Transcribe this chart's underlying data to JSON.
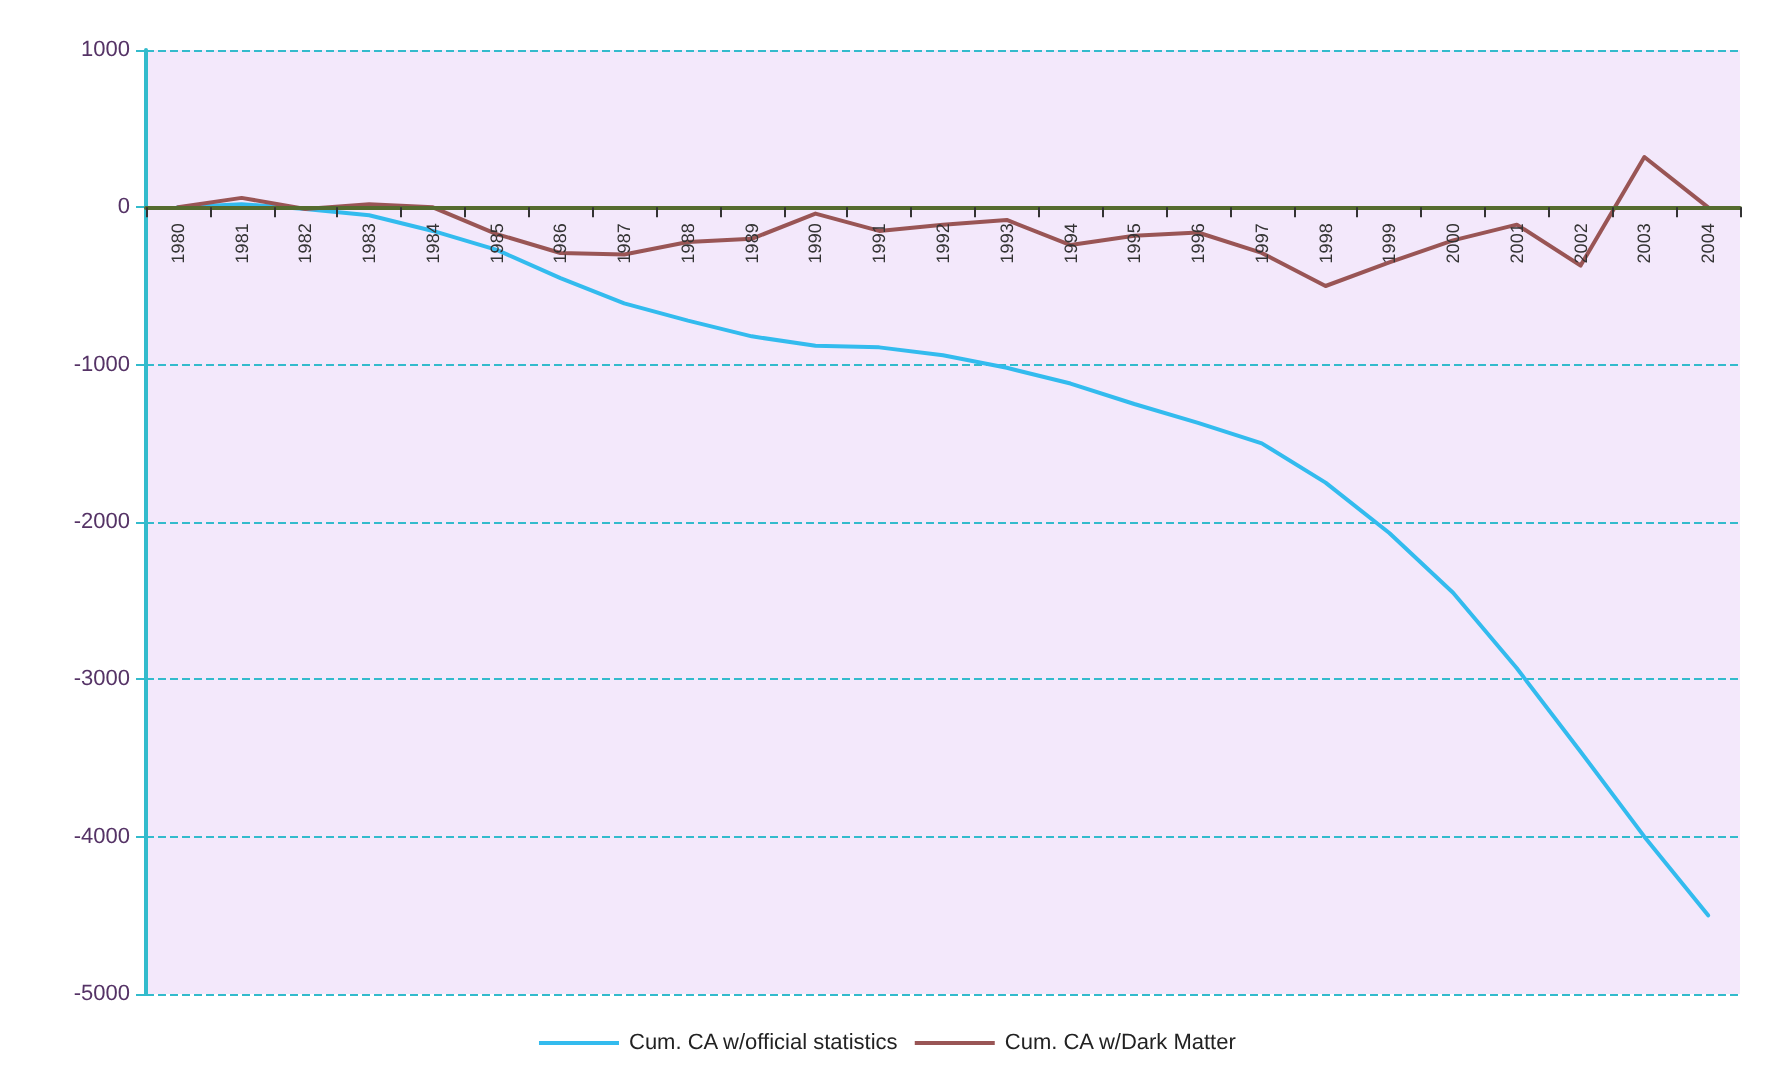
{
  "chart_data": {
    "type": "line",
    "categories": [
      "1980",
      "1981",
      "1982",
      "1983",
      "1984",
      "1985",
      "1986",
      "1987",
      "1988",
      "1989",
      "1990",
      "1991",
      "1992",
      "1993",
      "1994",
      "1995",
      "1996",
      "1997",
      "1998",
      "1999",
      "2000",
      "2001",
      "2002",
      "2003",
      "2004"
    ],
    "series": [
      {
        "name": "Cum. CA w/official statistics",
        "color": "#33bbee",
        "values": [
          0,
          20,
          -10,
          -50,
          -150,
          -270,
          -450,
          -610,
          -720,
          -820,
          -880,
          -890,
          -940,
          -1020,
          -1120,
          -1250,
          -1370,
          -1500,
          -1750,
          -2070,
          -2450,
          -2930,
          -3460,
          -4000,
          -4500
        ]
      },
      {
        "name": "Cum. CA w/Dark Matter",
        "color": "#995555",
        "values": [
          0,
          60,
          -10,
          20,
          0,
          -170,
          -290,
          -300,
          -220,
          -200,
          -40,
          -150,
          -110,
          -80,
          -240,
          -180,
          -160,
          -290,
          -500,
          -350,
          -210,
          -110,
          -370,
          320,
          0
        ]
      }
    ],
    "ylim": [
      -5000,
      1000
    ],
    "yticks": [
      -5000,
      -4000,
      -3000,
      -2000,
      -1000,
      0,
      1000
    ],
    "grid": "y",
    "legend": "bottom",
    "marker": "none",
    "line_style": "solid"
  }
}
